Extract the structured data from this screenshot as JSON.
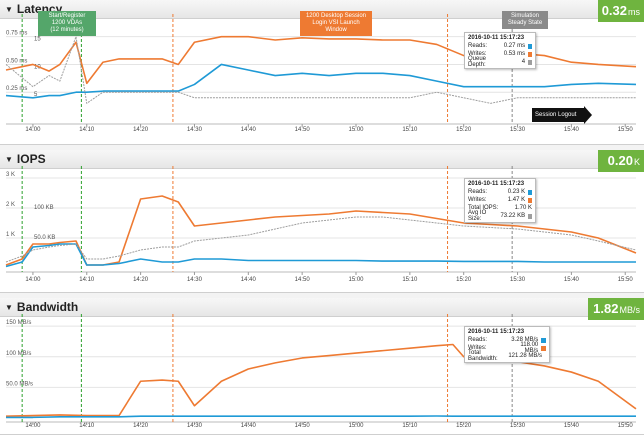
{
  "time_ticks": [
    "14:00",
    "14:10",
    "14:20",
    "14:30",
    "14:40",
    "14:50",
    "15:00",
    "15:10",
    "15:20",
    "15:30",
    "15:40",
    "15:50"
  ],
  "colors": {
    "reads": "#1f9ad6",
    "writes": "#ee7a32",
    "other": "#9e9e9e",
    "badge": "#6fb43f",
    "green_marker": "#2ca02c",
    "orange_marker": "#ee7a32"
  },
  "panels": {
    "latency": {
      "title": "Latency",
      "badge_value": "0.32",
      "badge_unit": "ms"
    },
    "iops": {
      "title": "IOPS",
      "badge_value": "0.20",
      "badge_unit": "K"
    },
    "bandwidth": {
      "title": "Bandwidth",
      "badge_value": "1.82",
      "badge_unit": "MB/s"
    }
  },
  "annotations": {
    "start": "Start/Register\n1200 VDAs\n(12 minutes)",
    "login": "1200 Desktop Session\nLogin VSI Launch\nWindow",
    "steady": "Simulation\nSteady State",
    "logout": "Session Logout"
  },
  "tooltips": {
    "latency": {
      "timestamp": "2016-10-11 15:17:23",
      "rows": [
        [
          "Reads:",
          "0.27 ms",
          "reads"
        ],
        [
          "Writes:",
          "0.53 ms",
          "writes"
        ],
        [
          "Queue Depth:",
          "4",
          "other"
        ]
      ]
    },
    "iops": {
      "timestamp": "2016-10-11 15:17:23",
      "rows": [
        [
          "Reads:",
          "0.23 K",
          "reads"
        ],
        [
          "Writes:",
          "1.47 K",
          "writes"
        ],
        [
          "Total IOPS:",
          "1.70 K",
          ""
        ],
        [
          "Avg IO Size:",
          "73.22 KB",
          "other"
        ]
      ]
    },
    "bandwidth": {
      "timestamp": "2016-10-11 15:17:23",
      "rows": [
        [
          "Reads:",
          "3.28 MB/s",
          "reads"
        ],
        [
          "Writes:",
          "118.00 MB/s",
          "writes"
        ],
        [
          "Total Bandwidth:",
          "121.28 MB/s",
          ""
        ]
      ]
    }
  },
  "chart_data": [
    {
      "type": "line",
      "title": "Latency",
      "x": [
        "13:55",
        "14:00",
        "14:03",
        "14:05",
        "14:08",
        "14:10",
        "14:13",
        "14:16",
        "14:20",
        "14:24",
        "14:27",
        "14:30",
        "14:35",
        "14:40",
        "14:45",
        "14:50",
        "14:55",
        "15:00",
        "15:05",
        "15:10",
        "15:15",
        "15:20",
        "15:25",
        "15:30",
        "15:35",
        "15:40",
        "15:45",
        "15:52"
      ],
      "y_ticks_left": [
        "0.75 ms",
        "0.50 ms",
        "0.25 ms"
      ],
      "y_ticks_right": [
        "15",
        "10",
        "5"
      ],
      "series": [
        {
          "name": "Writes",
          "color": "writes",
          "values": [
            0.45,
            0.5,
            0.44,
            0.5,
            0.7,
            0.33,
            0.52,
            0.55,
            0.55,
            0.55,
            0.5,
            0.7,
            0.75,
            0.75,
            0.72,
            0.74,
            0.73,
            0.73,
            0.72,
            0.72,
            0.68,
            0.58,
            0.57,
            0.6,
            0.58,
            0.52,
            0.5,
            0.48
          ]
        },
        {
          "name": "Reads",
          "color": "reads",
          "values": [
            0.22,
            0.2,
            0.22,
            0.22,
            0.25,
            0.25,
            0.26,
            0.26,
            0.26,
            0.26,
            0.26,
            0.32,
            0.5,
            0.45,
            0.4,
            0.42,
            0.4,
            0.42,
            0.42,
            0.4,
            0.35,
            0.3,
            0.3,
            0.3,
            0.3,
            0.32,
            0.33,
            0.32
          ]
        },
        {
          "name": "Queue Depth",
          "color": "other",
          "values": [
            10,
            6,
            8,
            7,
            15,
            3,
            5,
            5,
            5,
            5,
            5,
            4,
            4,
            4,
            4,
            4,
            4,
            4,
            4,
            4,
            5,
            4,
            3,
            4,
            4,
            4,
            4,
            4
          ]
        }
      ]
    },
    {
      "type": "line",
      "title": "IOPS",
      "x": [
        "13:55",
        "13:58",
        "14:00",
        "14:03",
        "14:05",
        "14:08",
        "14:10",
        "14:13",
        "14:16",
        "14:20",
        "14:24",
        "14:27",
        "14:30",
        "14:35",
        "14:40",
        "14:45",
        "14:50",
        "14:55",
        "15:00",
        "15:05",
        "15:10",
        "15:15",
        "15:20",
        "15:25",
        "15:30",
        "15:35",
        "15:40",
        "15:45",
        "15:52"
      ],
      "y_ticks_left": [
        "3 K",
        "2 K",
        "1 K"
      ],
      "y_ticks_right": [
        "100 KB",
        "50.0 KB"
      ],
      "series": [
        {
          "name": "Writes",
          "color": "writes",
          "values": [
            0.1,
            0.3,
            0.8,
            0.8,
            0.85,
            0.9,
            0.1,
            0.1,
            0.2,
            2.3,
            2.4,
            2.2,
            1.4,
            1.5,
            1.6,
            1.7,
            1.75,
            1.8,
            1.9,
            1.85,
            1.8,
            1.65,
            1.5,
            1.45,
            1.4,
            1.3,
            1.2,
            1.0,
            0.5
          ]
        },
        {
          "name": "Reads",
          "color": "reads",
          "values": [
            0.05,
            0.2,
            0.7,
            0.75,
            0.8,
            0.8,
            0.1,
            0.1,
            0.15,
            0.3,
            0.2,
            0.2,
            0.3,
            0.3,
            0.25,
            0.25,
            0.25,
            0.25,
            0.25,
            0.23,
            0.23,
            0.23,
            0.22,
            0.22,
            0.22,
            0.2,
            0.2,
            0.2,
            0.2
          ]
        },
        {
          "name": "Avg IO Size",
          "color": "other",
          "values": [
            0.2,
            0.4,
            0.6,
            0.7,
            0.75,
            0.8,
            0.3,
            0.3,
            0.4,
            0.6,
            0.7,
            0.7,
            0.9,
            1.0,
            1.1,
            1.3,
            1.5,
            1.6,
            1.7,
            1.7,
            1.6,
            1.5,
            1.4,
            1.35,
            1.3,
            1.2,
            1.1,
            0.9,
            0.6
          ]
        }
      ]
    },
    {
      "type": "line",
      "title": "Bandwidth",
      "x": [
        "13:55",
        "14:00",
        "14:05",
        "14:10",
        "14:13",
        "14:16",
        "14:20",
        "14:24",
        "14:27",
        "14:30",
        "14:35",
        "14:40",
        "14:45",
        "14:50",
        "14:55",
        "15:00",
        "15:05",
        "15:10",
        "15:15",
        "15:18",
        "15:20",
        "15:25",
        "15:30",
        "15:35",
        "15:40",
        "15:45",
        "15:52"
      ],
      "y_ticks_left": [
        "150 MB/s",
        "100 MB/s",
        "50.0 MB/s"
      ],
      "series": [
        {
          "name": "Writes",
          "color": "writes",
          "values": [
            3,
            4,
            5,
            4,
            4,
            4,
            60,
            62,
            60,
            20,
            60,
            80,
            90,
            98,
            102,
            106,
            110,
            114,
            118,
            120,
            100,
            95,
            92,
            85,
            75,
            60,
            15
          ]
        },
        {
          "name": "Reads",
          "color": "reads",
          "values": [
            1,
            1,
            2,
            2,
            2,
            2,
            3,
            3,
            3,
            3,
            3,
            3,
            3,
            3,
            3,
            3,
            3,
            3,
            3.28,
            3,
            3,
            3,
            3,
            3,
            3,
            3,
            3
          ]
        }
      ]
    }
  ]
}
